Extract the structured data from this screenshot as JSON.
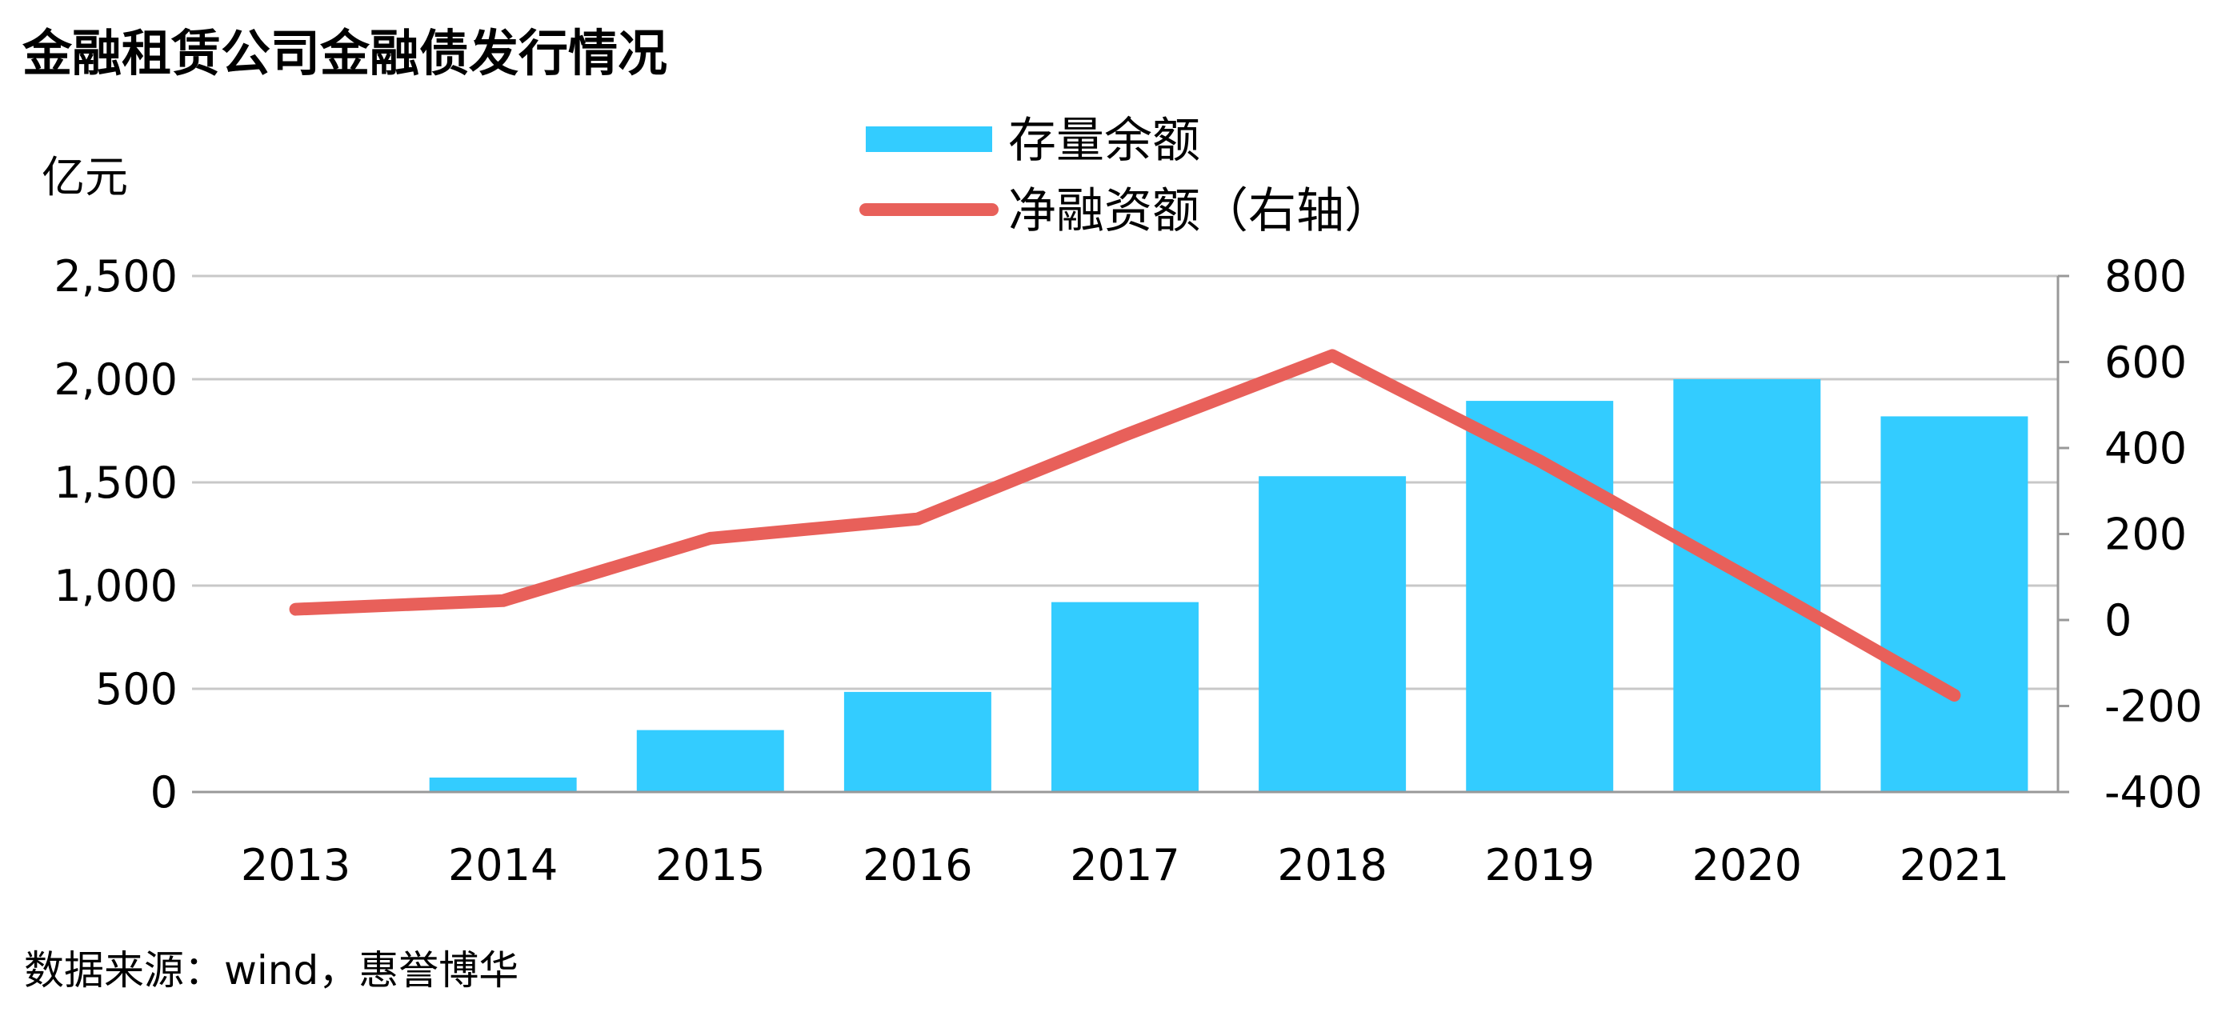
{
  "title": "金融租赁公司金融债发行情况",
  "unit_left": "亿元",
  "source": "数据来源：wind，惠誉博华",
  "colors": {
    "bar": "#33CCFF",
    "line": "#E8605A",
    "grid": "#C8C8C8",
    "axis": "#999999"
  },
  "chart_data": {
    "type": "bar",
    "title": "金融租赁公司金融债发行情况",
    "categories": [
      "2013",
      "2014",
      "2015",
      "2016",
      "2017",
      "2018",
      "2019",
      "2020",
      "2021"
    ],
    "series": [
      {
        "name": "存量余额",
        "type": "bar",
        "axis": "left",
        "values": [
          0,
          70,
          300,
          485,
          920,
          1530,
          1895,
          2000,
          1820
        ]
      },
      {
        "name": "净融资额（右轴）",
        "type": "line",
        "axis": "right",
        "values": [
          25,
          45,
          190,
          235,
          430,
          615,
          370,
          100,
          -175
        ]
      }
    ],
    "ylabel": "亿元",
    "ylim": [
      0,
      2500
    ],
    "y_ticks": [
      "2,500",
      "2,000",
      "1,500",
      "1,000",
      "500",
      "0"
    ],
    "y2lim": [
      -400,
      800
    ],
    "y2_ticks": [
      "800",
      "600",
      "400",
      "200",
      "0",
      "-200",
      "-400"
    ],
    "grid": true,
    "legend_position": "top-center"
  }
}
